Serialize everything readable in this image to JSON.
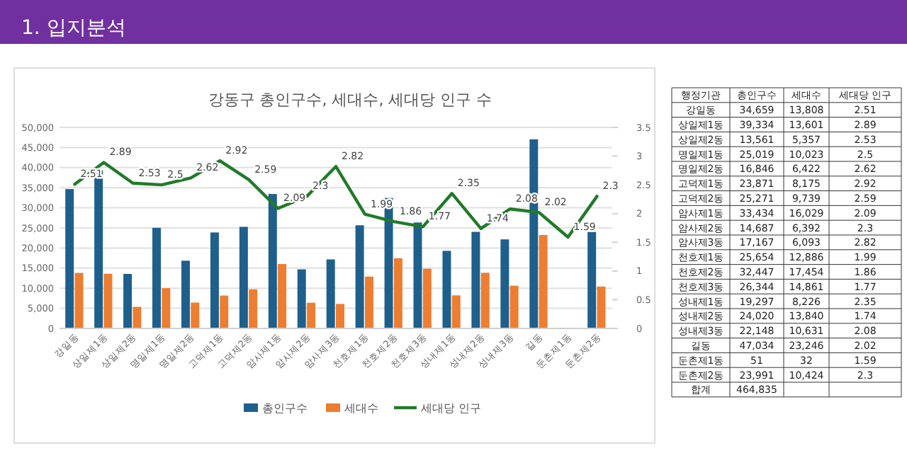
{
  "chart_data": [
    {
      "type": "bar",
      "title": "강동구 총인구수, 세대수, 세대당 인구 수",
      "categories": [
        "강일동",
        "상일제1동",
        "상일제2동",
        "명일제1동",
        "명일제2동",
        "고덕제1동",
        "고덕제2동",
        "암사제1동",
        "암사제2동",
        "암사제3동",
        "천호제1동",
        "천호제2동",
        "천호제3동",
        "성내제1동",
        "성내제2동",
        "성내제3동",
        "길동",
        "둔촌제1동",
        "둔촌제2동"
      ],
      "series": [
        {
          "name": "총인구수",
          "color": "#1f5f8b",
          "values": [
            34659,
            39334,
            13561,
            25019,
            16846,
            23871,
            25271,
            33434,
            14687,
            17167,
            25654,
            32447,
            26344,
            19297,
            24020,
            22148,
            47034,
            51,
            23991
          ]
        },
        {
          "name": "세대수",
          "color": "#ed7d31",
          "values": [
            13808,
            13601,
            5357,
            10023,
            6422,
            8175,
            9739,
            16029,
            6392,
            6093,
            12886,
            17454,
            14861,
            8226,
            13840,
            10631,
            23246,
            32,
            10424
          ]
        },
        {
          "name": "세대당 인구",
          "type": "line",
          "axis": "y2",
          "color": "#217a2a",
          "values": [
            2.51,
            2.89,
            2.53,
            2.5,
            2.62,
            2.92,
            2.59,
            2.09,
            2.3,
            2.82,
            1.99,
            1.86,
            1.77,
            2.35,
            1.74,
            2.08,
            2.02,
            1.59,
            2.3
          ],
          "value_labels": [
            "2.51",
            "2.89",
            "2.53",
            "2.5",
            "2.62",
            "2.92",
            "2.59",
            "2.09",
            "2.3",
            "2.82",
            "1.99",
            "1.86",
            "1.77",
            "2.35",
            "1.74",
            "2.08",
            "2.02",
            "1.59",
            "2.3"
          ]
        }
      ],
      "ylim": [
        0,
        50000
      ],
      "yticks": [
        0,
        {
          "value": 5000,
          "label": "5,000"
        },
        {
          "value": 10000,
          "label": "10,000"
        },
        {
          "value": 15000,
          "label": "15,000"
        },
        {
          "value": 20000,
          "label": "20,000"
        },
        {
          "value": 25000,
          "label": "25,000"
        },
        {
          "value": 30000,
          "label": "30,000"
        },
        {
          "value": 35000,
          "label": "35,000"
        },
        {
          "value": 40000,
          "label": "40,000"
        },
        {
          "value": 45000,
          "label": "45,000"
        },
        {
          "value": 50000,
          "label": "50,000"
        }
      ],
      "y2lim": [
        0,
        3.5
      ],
      "y2ticks": [
        0,
        0.5,
        1,
        1.5,
        2,
        2.5,
        3,
        3.5
      ],
      "grid": "y",
      "legend": "bottom",
      "annotations": [
        "1. 입지분석"
      ]
    },
    {
      "type": "other",
      "categories": [
        "강일동",
        "상일제1동",
        "상일제2동",
        "명일제1동",
        "명일제2동",
        "고덕제1동",
        "고덕제2동",
        "암사제1동",
        "암사제2동",
        "암사제3동",
        "천호제1동",
        "천호제2동",
        "천호제3동",
        "성내제1동",
        "성내제2동",
        "성내제3동",
        "길동",
        "둔촌제1동",
        "둔촌제2동"
      ],
      "series": [
        {
          "name": "총인구수",
          "values": [
            34659,
            39334,
            13561,
            25019,
            16846,
            23871,
            25271,
            33434,
            14687,
            17167,
            25654,
            32447,
            26344,
            19297,
            24020,
            22148,
            47034,
            51,
            23991
          ],
          "value_labels": [
            "34,659",
            "39,334",
            "13,561",
            "25,019",
            "16,846",
            "23,871",
            "25,271",
            "33,434",
            "14,687",
            "17,167",
            "25,654",
            "32,447",
            "26,344",
            "19,297",
            "24,020",
            "22,148",
            "47,034",
            "51",
            "23,991"
          ]
        },
        {
          "name": "세대수",
          "values": [
            13808,
            13601,
            5357,
            10023,
            6422,
            8175,
            9739,
            16029,
            6392,
            6093,
            12886,
            17454,
            14861,
            8226,
            13840,
            10631,
            23246,
            32,
            10424
          ],
          "value_labels": [
            "13,808",
            "13,601",
            "5,357",
            "10,023",
            "6,422",
            "8,175",
            "9,739",
            "16,029",
            "6,392",
            "6,093",
            "12,886",
            "17,454",
            "14,861",
            "8,226",
            "13,840",
            "10,631",
            "23,246",
            "32",
            "10,424"
          ]
        },
        {
          "name": "세대당 인구",
          "values": [
            2.51,
            2.89,
            2.53,
            2.5,
            2.62,
            2.92,
            2.59,
            2.09,
            2.3,
            2.82,
            1.99,
            1.86,
            1.77,
            2.35,
            1.74,
            2.08,
            2.02,
            1.59,
            2.3
          ],
          "value_labels": [
            "2.51",
            "2.89",
            "2.53",
            "2.5",
            "2.62",
            "2.92",
            "2.59",
            "2.09",
            "2.3",
            "2.82",
            "1.99",
            "1.86",
            "1.77",
            "2.35",
            "1.74",
            "2.08",
            "2.02",
            "1.59",
            "2.3"
          ]
        }
      ],
      "annotations": [
        "행정기관",
        "합계",
        "464,835"
      ]
    }
  ]
}
